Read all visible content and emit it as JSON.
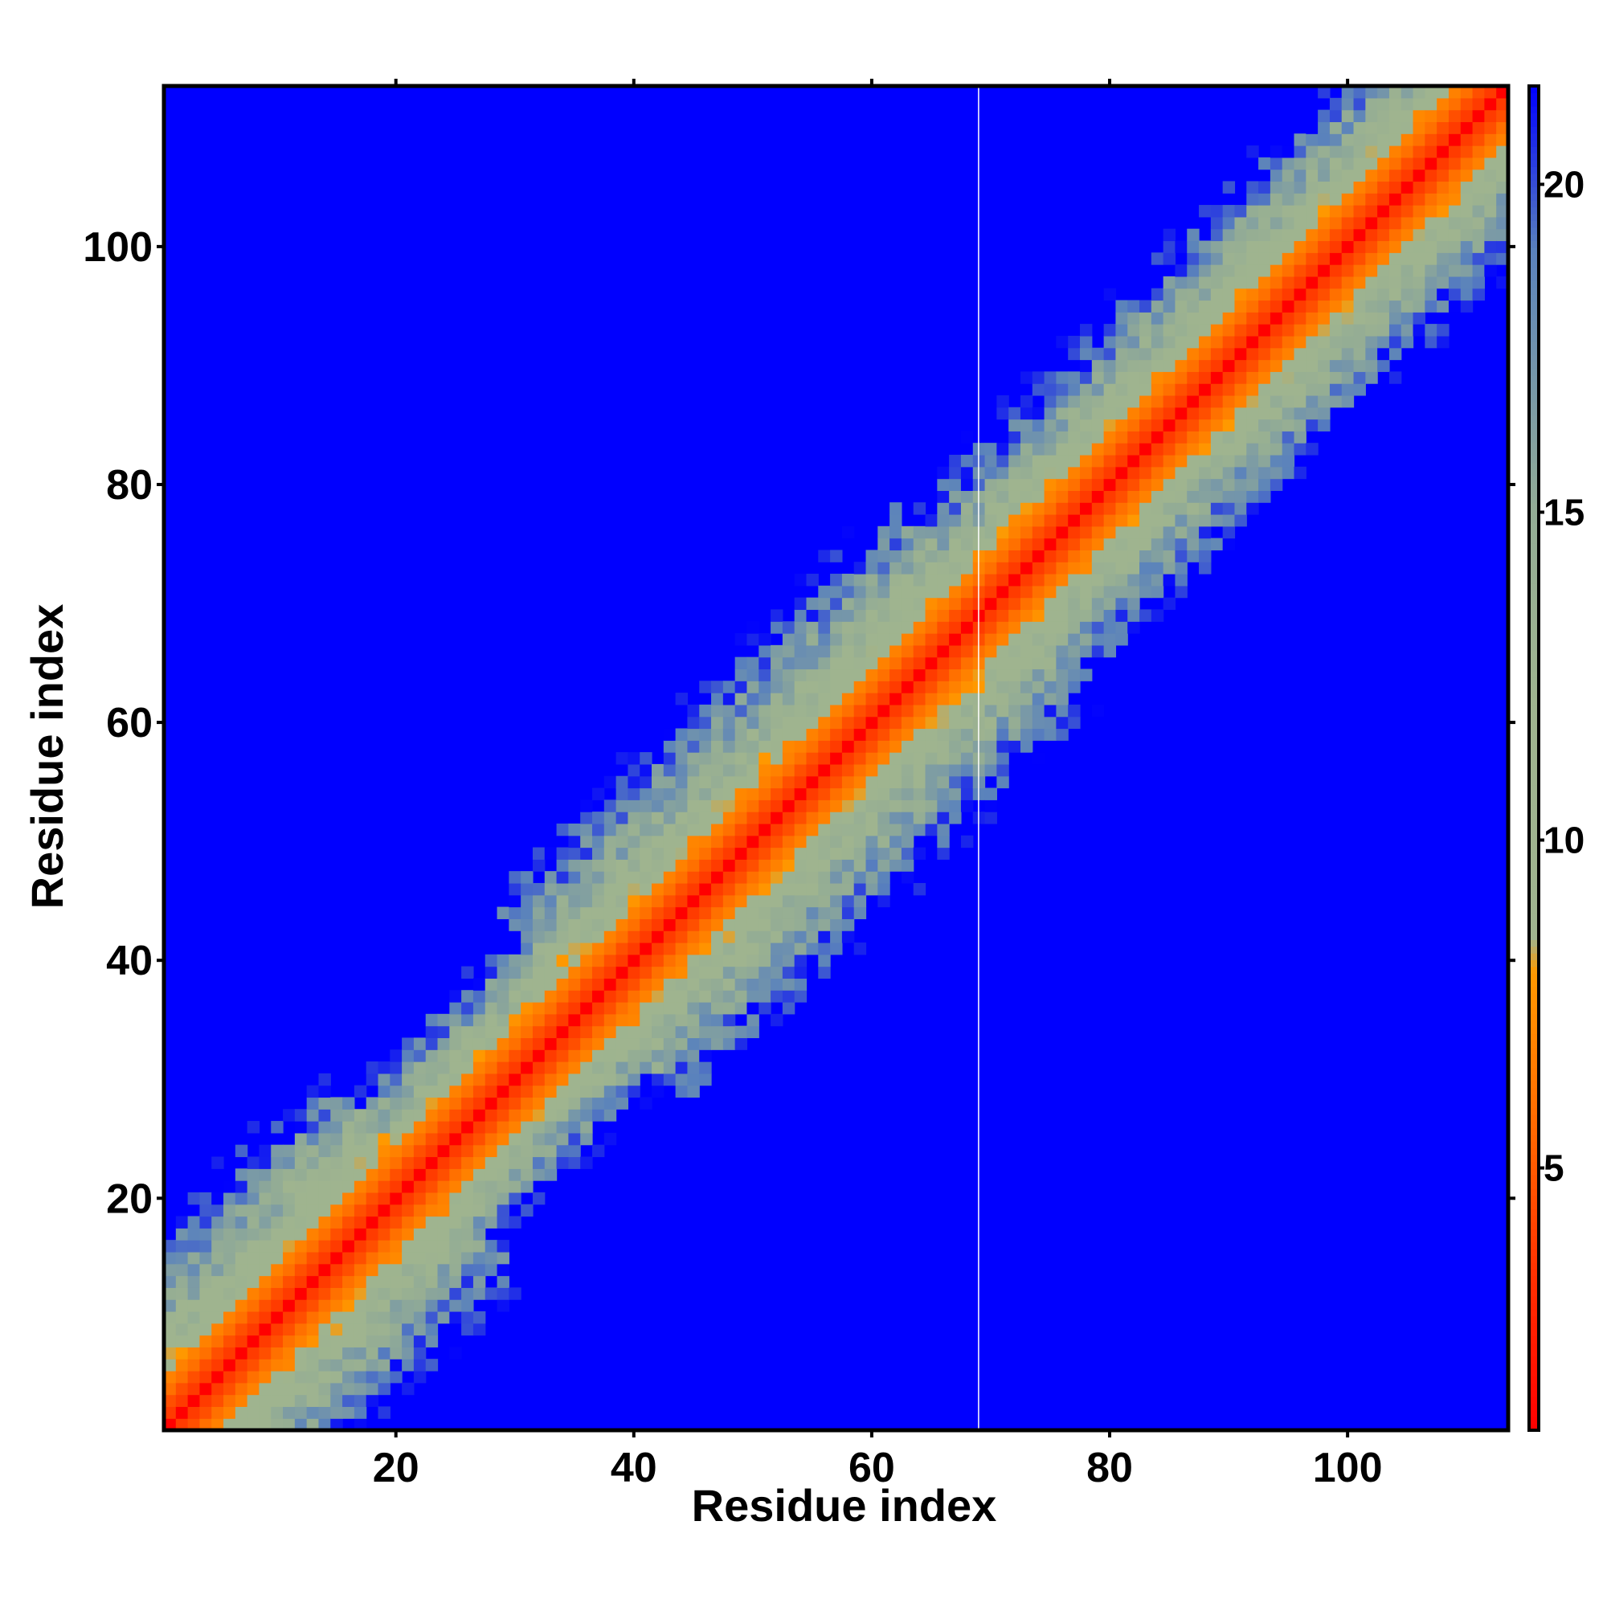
{
  "chart_data": {
    "type": "heatmap",
    "title": "",
    "xlabel": "Residue index",
    "ylabel": "Residue index",
    "n_residues": 113,
    "xlim": [
      0.5,
      113.5
    ],
    "ylim": [
      0.5,
      113.5
    ],
    "x_ticks": [
      20,
      40,
      60,
      80,
      100
    ],
    "y_ticks": [
      20,
      40,
      60,
      80,
      100
    ],
    "colorbar": {
      "range": [
        1,
        21.5
      ],
      "ticks": [
        5,
        10,
        15,
        20
      ],
      "stops": [
        {
          "value": 1,
          "color": "#ff0000"
        },
        {
          "value": 3.5,
          "color": "#ff3300"
        },
        {
          "value": 5.5,
          "color": "#ff6600"
        },
        {
          "value": 8.0,
          "color": "#ff9900"
        },
        {
          "value": 8.5,
          "color": "#9fb48f"
        },
        {
          "value": 12,
          "color": "#9fb48f"
        },
        {
          "value": 15,
          "color": "#93ac95"
        },
        {
          "value": 19,
          "color": "#5a82bc"
        },
        {
          "value": 21.5,
          "color": "#0000ff"
        }
      ],
      "saturation_color": "#0000ff"
    },
    "contact_profile": {
      "description_values": "approximate Cα–Cα distance as a function of residue position along the diagonal",
      "regions": [
        {
          "range": [
            1,
            22
          ],
          "band_halfwidth": 12
        },
        {
          "range": [
            22,
            36
          ],
          "band_halfwidth": 8
        },
        {
          "range": [
            36,
            70
          ],
          "band_halfwidth": 12
        },
        {
          "range": [
            70,
            113
          ],
          "band_halfwidth": 10
        }
      ]
    },
    "missing_column": 69,
    "grid": false,
    "legend": "colorbar-right"
  }
}
